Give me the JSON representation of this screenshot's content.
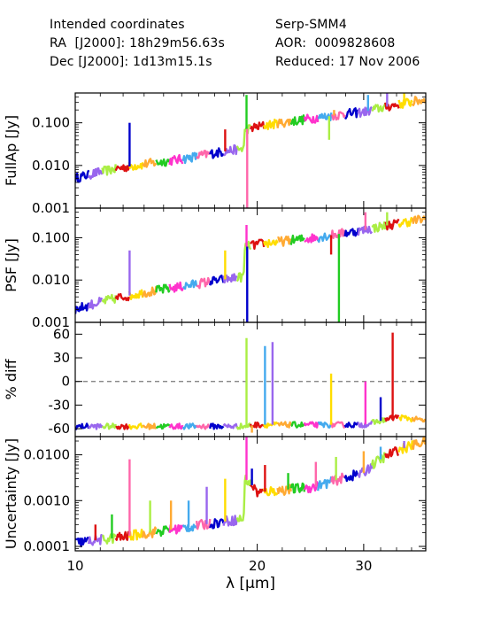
{
  "header": {
    "left": [
      "Intended coordinates",
      "RA  [J2000]: 18h29m56.63s",
      "Dec [J2000]: 1d13m15.1s"
    ],
    "right": [
      "Serp-SMM4",
      "AOR:  0009828608",
      "Reduced: 17 Nov 2006"
    ]
  },
  "chart_data": {
    "type": "line",
    "xlabel": "λ [μm]",
    "xscale": "log",
    "xlim": [
      10,
      38
    ],
    "xticks": [
      "10",
      "20",
      "30"
    ],
    "series_colors": [
      "#0000cc",
      "#9966ee",
      "#aaee44",
      "#dd1111",
      "#ffdd00",
      "#ffaa33",
      "#22cc22",
      "#ff33cc",
      "#44aaee",
      "#ff66aa"
    ],
    "panels": [
      {
        "ylabel": "FullAp [Jy]",
        "yscale": "log",
        "ylim": [
          0.001,
          0.5
        ],
        "yticks": [
          "0.100",
          "0.010",
          "0.001"
        ],
        "yticks_values": [
          0.1,
          0.01,
          0.001
        ],
        "anchors": [
          [
            10,
            0.005
          ],
          [
            12,
            0.009
          ],
          [
            15,
            0.014
          ],
          [
            19,
            0.025
          ],
          [
            19.1,
            0.07
          ],
          [
            20,
            0.08
          ],
          [
            25,
            0.13
          ],
          [
            30,
            0.18
          ],
          [
            38,
            0.35
          ]
        ],
        "spikes": [
          [
            12.3,
            0.1
          ],
          [
            17.7,
            0.07
          ],
          [
            19.2,
            0.45
          ],
          [
            19.25,
            0.001
          ],
          [
            26.3,
            0.04
          ],
          [
            26.8,
            0.2
          ],
          [
            30.5,
            0.45
          ],
          [
            32.8,
            0.5
          ],
          [
            35,
            0.5
          ]
        ]
      },
      {
        "ylabel": "PSF [Jy]",
        "yscale": "log",
        "ylim": [
          0.001,
          0.5
        ],
        "yticks": [
          "0.100",
          "0.010",
          "0.001"
        ],
        "yticks_values": [
          0.1,
          0.01,
          0.001
        ],
        "anchors": [
          [
            10,
            0.002
          ],
          [
            12,
            0.004
          ],
          [
            15,
            0.007
          ],
          [
            19,
            0.012
          ],
          [
            19.1,
            0.06
          ],
          [
            20,
            0.07
          ],
          [
            25,
            0.1
          ],
          [
            30,
            0.15
          ],
          [
            38,
            0.28
          ]
        ],
        "spikes": [
          [
            12.3,
            0.05
          ],
          [
            17.7,
            0.05
          ],
          [
            19.2,
            0.2
          ],
          [
            19.25,
            0.001
          ],
          [
            26.5,
            0.04
          ],
          [
            27.3,
            0.001
          ],
          [
            30.2,
            0.4
          ],
          [
            32.8,
            0.4
          ]
        ]
      },
      {
        "ylabel": "% diff",
        "yscale": "linear",
        "ylim": [
          -70,
          75
        ],
        "yticks": [
          "60",
          "30",
          "0",
          "-30",
          "-60"
        ],
        "yticks_values": [
          60,
          30,
          0,
          -30,
          -60
        ],
        "zero_line": true,
        "anchors": [
          [
            10,
            -57
          ],
          [
            19,
            -57
          ],
          [
            20,
            -55
          ],
          [
            30,
            -55
          ],
          [
            34,
            -45
          ],
          [
            38,
            -50
          ]
        ],
        "spikes": [
          [
            19.2,
            55
          ],
          [
            19.6,
            -65
          ],
          [
            20.6,
            45
          ],
          [
            21.2,
            50
          ],
          [
            26.5,
            10
          ],
          [
            30.2,
            0
          ],
          [
            32,
            -20
          ],
          [
            33.5,
            62
          ]
        ]
      },
      {
        "ylabel": "Uncertainty [Jy]",
        "yscale": "log",
        "ylim": [
          8e-05,
          0.025
        ],
        "yticks": [
          "0.0100",
          "0.0010",
          "0.0001"
        ],
        "yticks_values": [
          0.01,
          0.001,
          0.0001
        ],
        "anchors": [
          [
            10,
            0.00012
          ],
          [
            12,
            0.00016
          ],
          [
            15,
            0.00025
          ],
          [
            19,
            0.0004
          ],
          [
            19.1,
            0.003
          ],
          [
            20,
            0.0015
          ],
          [
            25,
            0.002
          ],
          [
            30,
            0.004
          ],
          [
            38,
            0.02
          ]
        ],
        "spikes": [
          [
            10.8,
            0.0003
          ],
          [
            11.5,
            0.0005
          ],
          [
            12.3,
            0.008
          ],
          [
            13.3,
            0.001
          ],
          [
            14.4,
            0.001
          ],
          [
            15.4,
            0.001
          ],
          [
            16.5,
            0.002
          ],
          [
            17.7,
            0.003
          ],
          [
            19.2,
            0.025
          ],
          [
            19.6,
            0.005
          ],
          [
            20.6,
            0.006
          ],
          [
            22.5,
            0.004
          ],
          [
            25,
            0.007
          ],
          [
            27,
            0.009
          ],
          [
            30,
            0.012
          ],
          [
            32,
            0.015
          ],
          [
            35,
            0.02
          ]
        ]
      }
    ]
  }
}
